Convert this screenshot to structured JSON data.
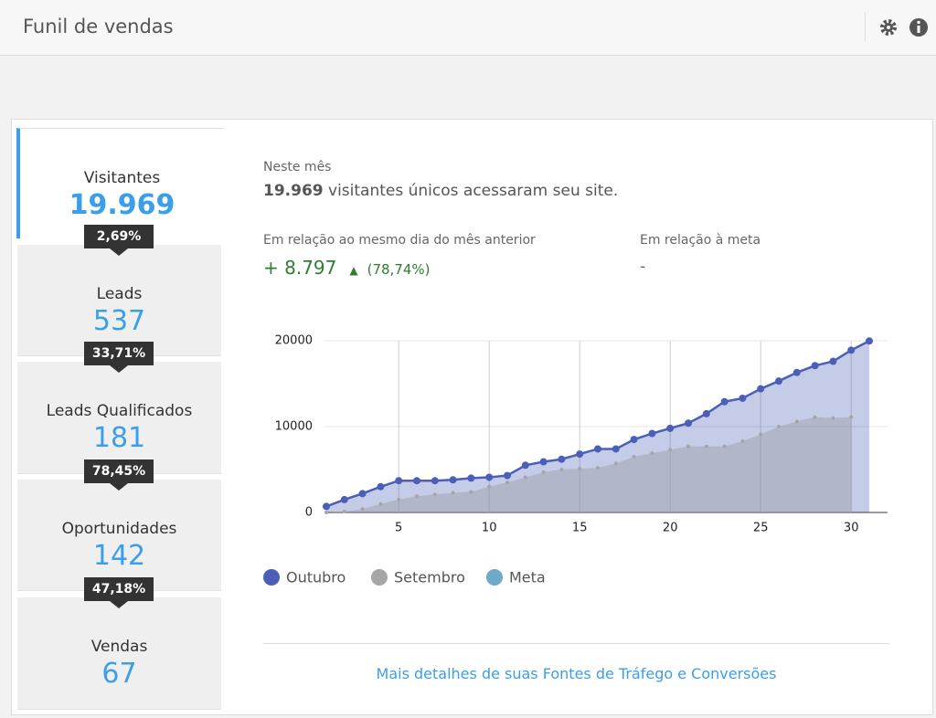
{
  "header": {
    "title": "Funil de vendas"
  },
  "funnel": {
    "stages": [
      {
        "label": "Visitantes",
        "value": "19.969"
      },
      {
        "label": "Leads",
        "value": "537"
      },
      {
        "label": "Leads Qualificados",
        "value": "181"
      },
      {
        "label": "Oportunidades",
        "value": "142"
      },
      {
        "label": "Vendas",
        "value": "67"
      }
    ],
    "rates": [
      "2,69%",
      "33,71%",
      "78,45%",
      "47,18%"
    ]
  },
  "summary": {
    "caption": "Neste mês",
    "count": "19.969",
    "text": "visitantes únicos acessaram seu site.",
    "previous_label": "Em relação ao mesmo dia do mês anterior",
    "previous_delta": "+ 8.797",
    "previous_pct": "(78,74%)",
    "goal_label": "Em relação à meta",
    "goal_value": "-"
  },
  "chart_data": {
    "type": "area",
    "x": [
      1,
      2,
      3,
      4,
      5,
      6,
      7,
      8,
      9,
      10,
      11,
      12,
      13,
      14,
      15,
      16,
      17,
      18,
      19,
      20,
      21,
      22,
      23,
      24,
      25,
      26,
      27,
      28,
      29,
      30,
      31
    ],
    "series": [
      {
        "name": "Outubro",
        "color": "#4b5fb8",
        "values": [
          700,
          1500,
          2200,
          3000,
          3700,
          3700,
          3700,
          3800,
          4000,
          4100,
          4300,
          5500,
          5900,
          6200,
          6800,
          7400,
          7400,
          8500,
          9200,
          9800,
          10400,
          11500,
          12900,
          13300,
          14400,
          15300,
          16300,
          17100,
          17600,
          18900,
          19969
        ]
      },
      {
        "name": "Setembro",
        "color": "#a6a6a6",
        "values": [
          0,
          100,
          400,
          1000,
          1500,
          1900,
          2100,
          2300,
          2400,
          3000,
          3500,
          4100,
          4700,
          5000,
          5100,
          5200,
          5700,
          6500,
          6900,
          7300,
          7700,
          7700,
          7700,
          8300,
          9100,
          10000,
          10600,
          11100,
          11000,
          11100,
          null
        ]
      },
      {
        "name": "Meta",
        "color": "#6fa8c8",
        "values": [
          null,
          null,
          null,
          null,
          null,
          null,
          null,
          null,
          null,
          null,
          null,
          null,
          null,
          null,
          null,
          null,
          null,
          null,
          null,
          null,
          null,
          null,
          null,
          null,
          null,
          null,
          null,
          null,
          null,
          null,
          null
        ]
      }
    ],
    "xlim": [
      1,
      32
    ],
    "xticks": [
      5,
      10,
      15,
      20,
      25,
      30
    ],
    "ylim": [
      0,
      20000
    ],
    "yticks": [
      0,
      10000,
      20000
    ],
    "grid": true
  },
  "footer": {
    "link": "Mais detalhes de suas Fontes de Tráfego e Conversões"
  }
}
